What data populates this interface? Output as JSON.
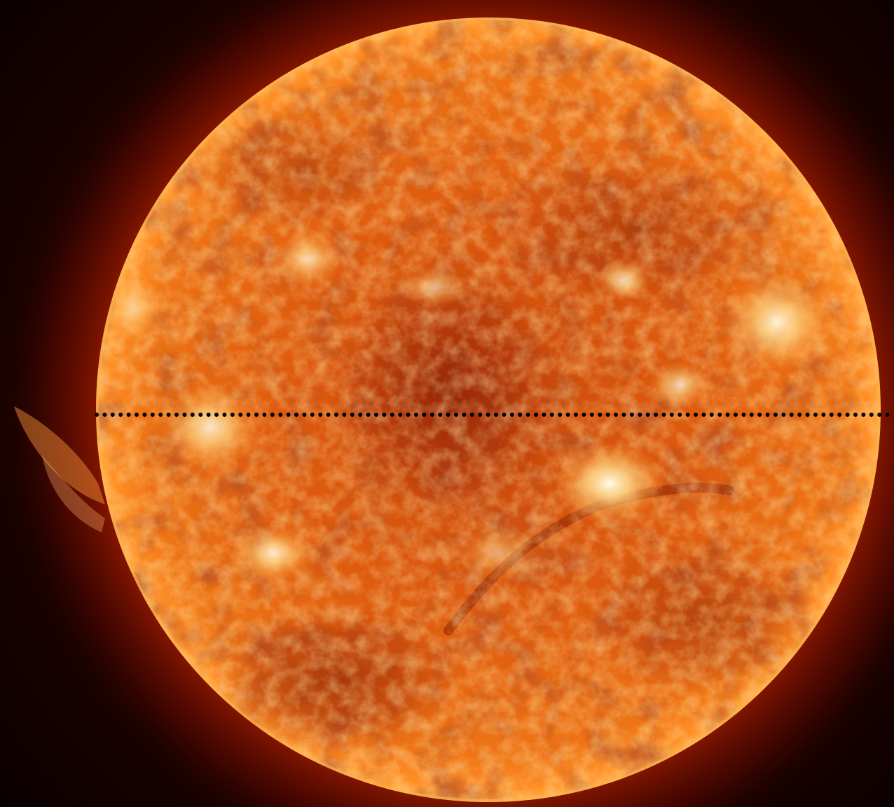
{
  "image": {
    "subject": "sun-extreme-ultraviolet",
    "colors": {
      "background_dark": "#0a0000",
      "corona_glow": "#b52000",
      "disk_base": "#e8620c",
      "disk_dark": "#a8300a",
      "active_region": "#fff0c8",
      "limb": "#ff8a1e",
      "dotted_line": "#000000"
    }
  }
}
